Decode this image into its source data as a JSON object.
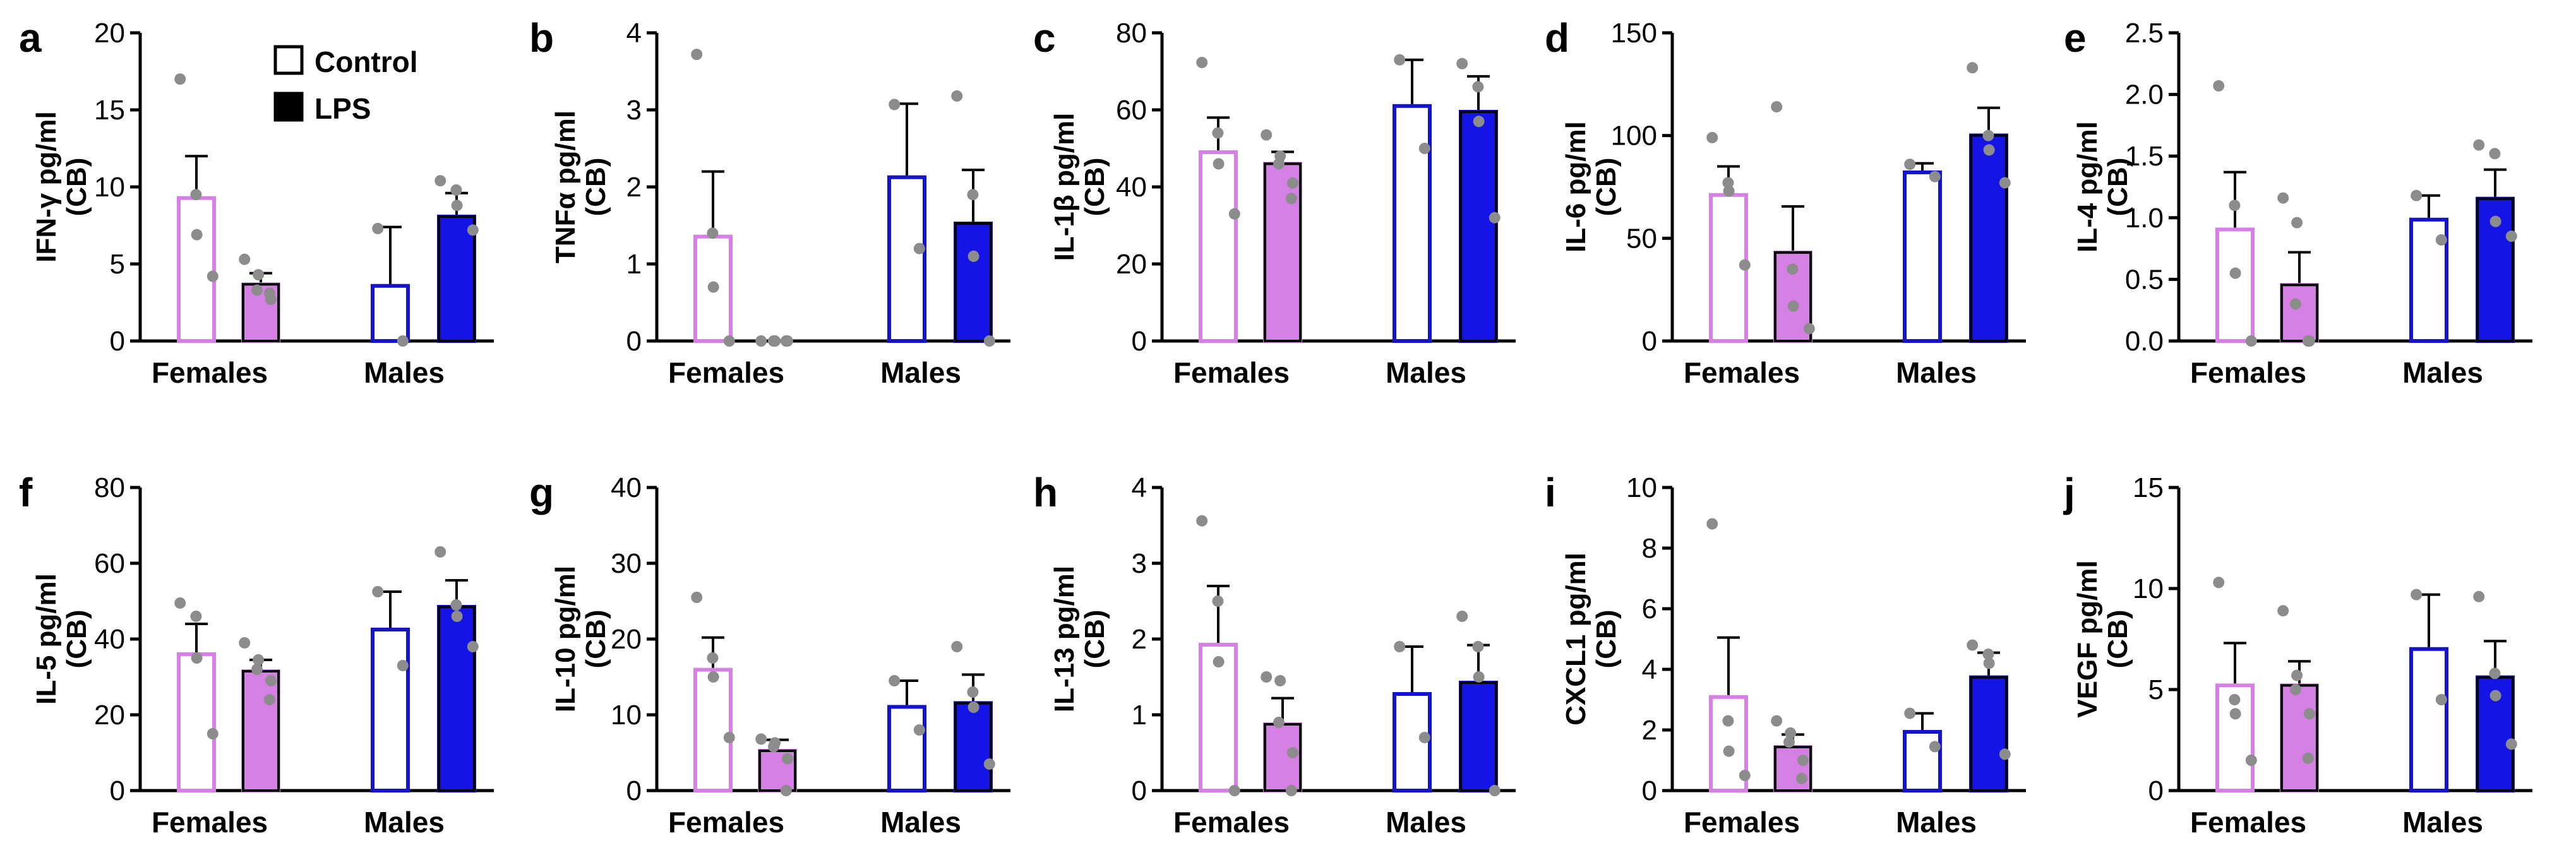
{
  "colors": {
    "female": "#d680e6",
    "female_fill": "#d680e6",
    "male": "#1414cc",
    "male_fill": "#1414e6",
    "point": "#8c8c8c",
    "axis": "#000000"
  },
  "legend": {
    "control": "Control",
    "lps": "LPS"
  },
  "chart_data": [
    {
      "type": "bar",
      "letter": "a",
      "ylabel": "IFN-γ pg/ml",
      "ylabel2": "(CB)",
      "ylim": [
        0,
        20
      ],
      "yticks": [
        "0",
        "5",
        "10",
        "15",
        "20"
      ],
      "ytick_values": [
        0,
        5,
        10,
        15,
        20
      ],
      "categories": [
        "Females",
        "Males"
      ],
      "series": [
        {
          "group": "Females",
          "treatment": "Control",
          "mean": 9.4,
          "sem": 2.6,
          "points": [
            17.0,
            9.5,
            6.9,
            4.2
          ]
        },
        {
          "group": "Females",
          "treatment": "LPS",
          "mean": 3.8,
          "sem": 0.6,
          "points": [
            5.3,
            4.3,
            3.3,
            2.7,
            3.1
          ]
        },
        {
          "group": "Males",
          "treatment": "Control",
          "mean": 3.7,
          "sem": 3.7,
          "points": [
            7.3,
            0.0
          ]
        },
        {
          "group": "Males",
          "treatment": "LPS",
          "mean": 8.2,
          "sem": 1.4,
          "points": [
            10.4,
            9.8,
            8.8,
            7.2
          ]
        }
      ]
    },
    {
      "type": "bar",
      "letter": "b",
      "ylabel": "TNFα pg/ml",
      "ylabel2": "(CB)",
      "ylim": [
        0,
        4
      ],
      "yticks": [
        "0",
        "1",
        "2",
        "3",
        "4"
      ],
      "ytick_values": [
        0,
        1,
        2,
        3,
        4
      ],
      "categories": [
        "Females",
        "Males"
      ],
      "series": [
        {
          "group": "Females",
          "treatment": "Control",
          "mean": 1.38,
          "sem": 0.82,
          "points": [
            3.72,
            1.4,
            0.7,
            0.0
          ]
        },
        {
          "group": "Females",
          "treatment": "LPS",
          "mean": 0.0,
          "sem": 0.0,
          "points": [
            0.0,
            0.0,
            0.0,
            0.0,
            0.0
          ]
        },
        {
          "group": "Males",
          "treatment": "Control",
          "mean": 2.15,
          "sem": 0.93,
          "points": [
            3.07,
            1.2
          ]
        },
        {
          "group": "Males",
          "treatment": "LPS",
          "mean": 1.55,
          "sem": 0.67,
          "points": [
            3.18,
            1.9,
            1.1,
            0.0
          ]
        }
      ]
    },
    {
      "type": "bar",
      "letter": "c",
      "ylabel": "IL-1β pg/ml",
      "ylabel2": "(CB)",
      "ylim": [
        0,
        80
      ],
      "yticks": [
        "0",
        "20",
        "40",
        "60",
        "80"
      ],
      "ytick_values": [
        0,
        20,
        40,
        60,
        80
      ],
      "categories": [
        "Females",
        "Males"
      ],
      "series": [
        {
          "group": "Females",
          "treatment": "Control",
          "mean": 49.5,
          "sem": 8.5,
          "points": [
            72.3,
            54.0,
            46.0,
            33.0
          ]
        },
        {
          "group": "Females",
          "treatment": "LPS",
          "mean": 46.5,
          "sem": 2.6,
          "points": [
            53.5,
            48.0,
            46.0,
            41.0,
            37.0
          ]
        },
        {
          "group": "Males",
          "treatment": "Control",
          "mean": 61.5,
          "sem": 11.5,
          "points": [
            73.0,
            50.0
          ]
        },
        {
          "group": "Males",
          "treatment": "LPS",
          "mean": 60.0,
          "sem": 8.7,
          "points": [
            72.0,
            66.0,
            57.0,
            32.0
          ]
        }
      ]
    },
    {
      "type": "bar",
      "letter": "d",
      "ylabel": "IL-6 pg/ml",
      "ylabel2": "(CB)",
      "ylim": [
        0,
        150
      ],
      "yticks": [
        "0",
        "50",
        "100",
        "150"
      ],
      "ytick_values": [
        0,
        50,
        100,
        150
      ],
      "categories": [
        "Females",
        "Males"
      ],
      "series": [
        {
          "group": "Females",
          "treatment": "Control",
          "mean": 72.0,
          "sem": 13.0,
          "points": [
            99.0,
            77.0,
            73.0,
            37.0
          ]
        },
        {
          "group": "Females",
          "treatment": "LPS",
          "mean": 44.0,
          "sem": 21.5,
          "points": [
            114.0,
            35.0,
            17.0,
            6.0
          ]
        },
        {
          "group": "Males",
          "treatment": "Control",
          "mean": 83.0,
          "sem": 3.5,
          "points": [
            86.0,
            80.0
          ]
        },
        {
          "group": "Males",
          "treatment": "LPS",
          "mean": 101.0,
          "sem": 12.5,
          "points": [
            133.0,
            100.0,
            93.0,
            77.0
          ]
        }
      ]
    },
    {
      "type": "bar",
      "letter": "e",
      "ylabel": "IL-4 pg/ml",
      "ylabel2": "(CB)",
      "ylim": [
        0,
        2.5
      ],
      "yticks": [
        "0.0",
        "0.5",
        "1.0",
        "1.5",
        "2.0",
        "2.5"
      ],
      "ytick_values": [
        0,
        0.5,
        1,
        1.5,
        2,
        2.5
      ],
      "categories": [
        "Females",
        "Males"
      ],
      "series": [
        {
          "group": "Females",
          "treatment": "Control",
          "mean": 0.92,
          "sem": 0.45,
          "points": [
            2.07,
            1.1,
            0.55,
            0.0
          ]
        },
        {
          "group": "Females",
          "treatment": "LPS",
          "mean": 0.47,
          "sem": 0.25,
          "points": [
            1.16,
            0.96,
            0.3,
            0.0,
            0.0
          ]
        },
        {
          "group": "Males",
          "treatment": "Control",
          "mean": 1.0,
          "sem": 0.18,
          "points": [
            1.18,
            0.82
          ]
        },
        {
          "group": "Males",
          "treatment": "LPS",
          "mean": 1.17,
          "sem": 0.22,
          "points": [
            1.59,
            1.52,
            0.97,
            0.85
          ]
        }
      ]
    },
    {
      "type": "bar",
      "letter": "f",
      "ylabel": "IL-5 pg/ml",
      "ylabel2": "(CB)",
      "ylim": [
        0,
        80
      ],
      "yticks": [
        "0",
        "20",
        "40",
        "60",
        "80"
      ],
      "ytick_values": [
        0,
        20,
        40,
        60,
        80
      ],
      "categories": [
        "Females",
        "Males"
      ],
      "series": [
        {
          "group": "Females",
          "treatment": "Control",
          "mean": 36.5,
          "sem": 7.5,
          "points": [
            49.5,
            46.0,
            35.0,
            15.0
          ]
        },
        {
          "group": "Females",
          "treatment": "LPS",
          "mean": 32.0,
          "sem": 2.5,
          "points": [
            39.0,
            34.5,
            32.0,
            29.0,
            24.0
          ]
        },
        {
          "group": "Males",
          "treatment": "Control",
          "mean": 43.0,
          "sem": 9.5,
          "points": [
            52.5,
            33.0
          ]
        },
        {
          "group": "Males",
          "treatment": "LPS",
          "mean": 49.0,
          "sem": 6.5,
          "points": [
            63.0,
            49.0,
            46.0,
            38.0
          ]
        }
      ]
    },
    {
      "type": "bar",
      "letter": "g",
      "ylabel": "IL-10 pg/ml",
      "ylabel2": "(CB)",
      "ylim": [
        0,
        40
      ],
      "yticks": [
        "0",
        "10",
        "20",
        "30",
        "40"
      ],
      "ytick_values": [
        0,
        10,
        20,
        30,
        40
      ],
      "categories": [
        "Females",
        "Males"
      ],
      "series": [
        {
          "group": "Females",
          "treatment": "Control",
          "mean": 16.2,
          "sem": 4.0,
          "points": [
            25.5,
            17.5,
            15.0,
            7.0
          ]
        },
        {
          "group": "Females",
          "treatment": "LPS",
          "mean": 5.5,
          "sem": 1.2,
          "points": [
            6.8,
            6.3,
            5.8,
            4.2,
            0.0
          ]
        },
        {
          "group": "Males",
          "treatment": "Control",
          "mean": 11.3,
          "sem": 3.2,
          "points": [
            14.5,
            8.0
          ]
        },
        {
          "group": "Males",
          "treatment": "LPS",
          "mean": 11.8,
          "sem": 3.5,
          "points": [
            19.0,
            13.0,
            11.0,
            3.5
          ]
        }
      ]
    },
    {
      "type": "bar",
      "letter": "h",
      "ylabel": "IL-13 pg/ml",
      "ylabel2": "(CB)",
      "ylim": [
        0,
        4
      ],
      "yticks": [
        "0",
        "1",
        "2",
        "3",
        "4"
      ],
      "ytick_values": [
        0,
        1,
        2,
        3,
        4
      ],
      "categories": [
        "Females",
        "Males"
      ],
      "series": [
        {
          "group": "Females",
          "treatment": "Control",
          "mean": 1.95,
          "sem": 0.75,
          "points": [
            3.56,
            2.5,
            1.7,
            0.0
          ]
        },
        {
          "group": "Females",
          "treatment": "LPS",
          "mean": 0.9,
          "sem": 0.32,
          "points": [
            1.5,
            1.45,
            0.9,
            0.5,
            0.0
          ]
        },
        {
          "group": "Males",
          "treatment": "Control",
          "mean": 1.3,
          "sem": 0.6,
          "points": [
            1.9,
            0.7
          ]
        },
        {
          "group": "Males",
          "treatment": "LPS",
          "mean": 1.45,
          "sem": 0.47,
          "points": [
            2.3,
            1.9,
            1.5,
            0.0
          ]
        }
      ]
    },
    {
      "type": "bar",
      "letter": "i",
      "ylabel": "CXCL1 pg/ml",
      "ylabel2": "(CB)",
      "ylim": [
        0,
        10
      ],
      "yticks": [
        "0",
        "2",
        "4",
        "6",
        "8",
        "10"
      ],
      "ytick_values": [
        0,
        2,
        4,
        6,
        8,
        10
      ],
      "categories": [
        "Females",
        "Males"
      ],
      "series": [
        {
          "group": "Females",
          "treatment": "Control",
          "mean": 3.15,
          "sem": 1.9,
          "points": [
            8.8,
            2.3,
            1.3,
            0.5
          ]
        },
        {
          "group": "Females",
          "treatment": "LPS",
          "mean": 1.5,
          "sem": 0.35,
          "points": [
            2.3,
            1.9,
            1.6,
            1.0,
            0.4
          ]
        },
        {
          "group": "Males",
          "treatment": "Control",
          "mean": 2.0,
          "sem": 0.55,
          "points": [
            2.55,
            1.45
          ]
        },
        {
          "group": "Males",
          "treatment": "LPS",
          "mean": 3.8,
          "sem": 0.75,
          "points": [
            4.8,
            4.5,
            4.2,
            1.2
          ]
        }
      ]
    },
    {
      "type": "bar",
      "letter": "j",
      "ylabel": "VEGF pg/ml",
      "ylabel2": "(CB)",
      "ylim": [
        0,
        15
      ],
      "yticks": [
        "0",
        "5",
        "10",
        "15"
      ],
      "ytick_values": [
        0,
        5,
        10,
        15
      ],
      "categories": [
        "Females",
        "Males"
      ],
      "series": [
        {
          "group": "Females",
          "treatment": "Control",
          "mean": 5.3,
          "sem": 2.0,
          "points": [
            10.3,
            4.5,
            3.8,
            1.5
          ]
        },
        {
          "group": "Females",
          "treatment": "LPS",
          "mean": 5.3,
          "sem": 1.1,
          "points": [
            8.9,
            5.7,
            5.0,
            3.8,
            1.6
          ]
        },
        {
          "group": "Males",
          "treatment": "Control",
          "mean": 7.1,
          "sem": 2.6,
          "points": [
            9.7,
            4.5
          ]
        },
        {
          "group": "Males",
          "treatment": "LPS",
          "mean": 5.7,
          "sem": 1.7,
          "points": [
            9.6,
            5.8,
            4.7,
            2.3
          ]
        }
      ]
    }
  ]
}
